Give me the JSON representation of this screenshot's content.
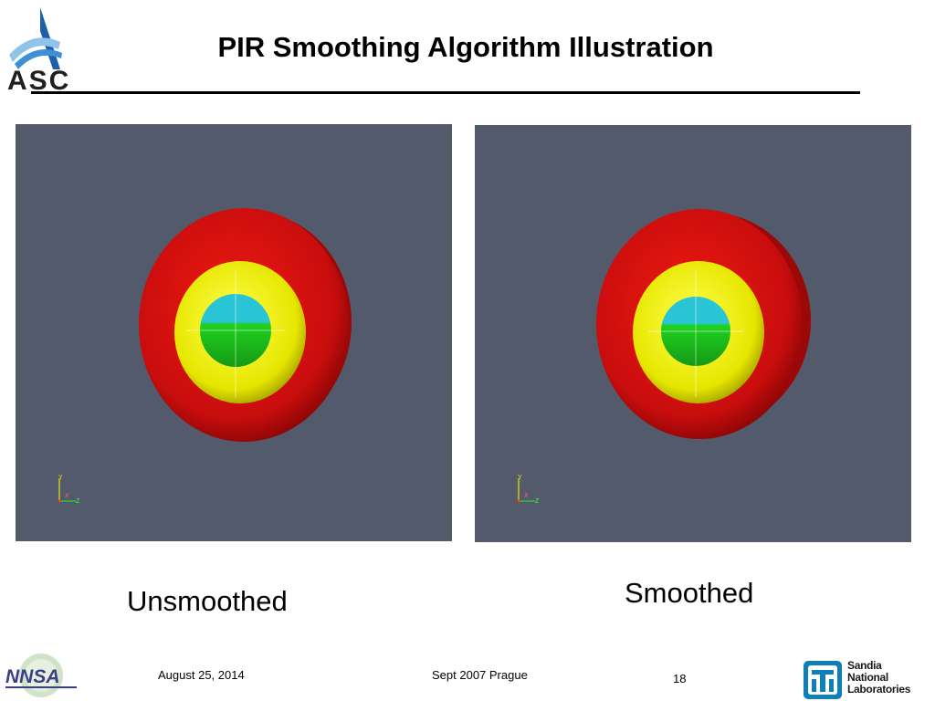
{
  "slide": {
    "title": "PIR Smoothing Algorithm Illustration",
    "logos": {
      "top_left": "ASC",
      "bottom_left": "NNSA",
      "bottom_right": "Sandia National Laboratories"
    }
  },
  "panels": [
    {
      "caption": "Unsmoothed",
      "axes": {
        "y": "Y",
        "x": "X",
        "z": "Z"
      }
    },
    {
      "caption": "Smoothed",
      "axes": {
        "y": "Y",
        "x": "X",
        "z": "Z"
      }
    }
  ],
  "footer": {
    "date": "August 25, 2014",
    "event": "Sept 2007 Prague",
    "page": "18",
    "sandia_lines": [
      "Sandia",
      "National",
      "Laboratories"
    ]
  },
  "colors": {
    "panel_bg": "#535a6b",
    "shell_outer": "#c80d0d",
    "shell_middle": "#e6e600",
    "core_top": "#29c4d6",
    "core_bottom": "#1fd11f",
    "title_rule": "#000000"
  }
}
